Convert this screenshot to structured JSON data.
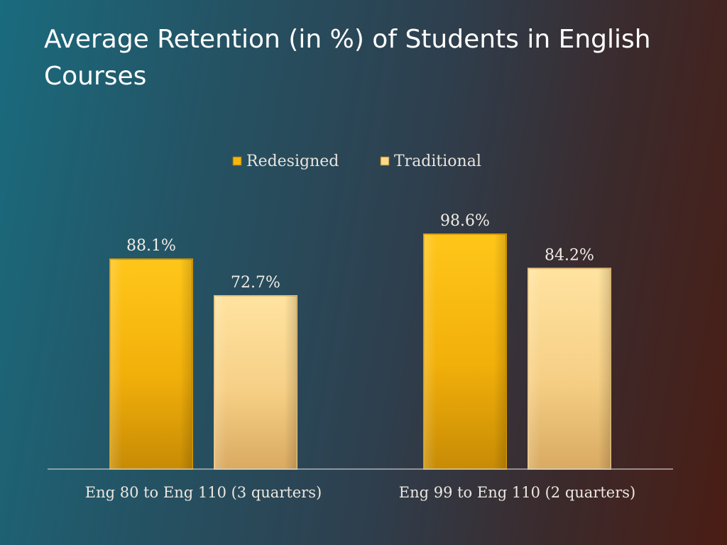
{
  "slide": {
    "title": "Average Retention (in %) of Students in English Courses"
  },
  "chart_data": {
    "type": "bar",
    "title": "Average Retention (in %) of Students in English Courses",
    "categories": [
      "Eng 80 to Eng 110 (3 quarters)",
      "Eng 99 to Eng 110 (2 quarters)"
    ],
    "series": [
      {
        "name": "Redesigned",
        "values": [
          88.1,
          98.6
        ],
        "color": "#f5b70a"
      },
      {
        "name": "Traditional",
        "values": [
          72.7,
          84.2
        ],
        "color": "#fbd98a"
      }
    ],
    "data_labels": [
      [
        "88.1%",
        "98.6%"
      ],
      [
        "72.7%",
        "84.2%"
      ]
    ],
    "ylim": [
      0,
      100
    ],
    "grid": false,
    "legend": "top-center"
  }
}
